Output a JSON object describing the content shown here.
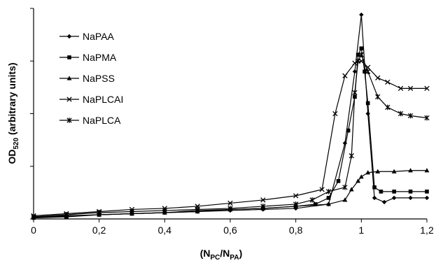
{
  "chart_data": {
    "type": "line",
    "title": "",
    "xlabel": {
      "main": "(N",
      "sub1": "PC",
      "mid": "/N",
      "sub2": "PA",
      "end": ")"
    },
    "ylabel": {
      "main": "OD",
      "sub": "520",
      "rest": " (arbitrary units)"
    },
    "xlim": [
      0,
      1.2
    ],
    "ylim": [
      0,
      1.0
    ],
    "xticks": [
      "0",
      "0,2",
      "0,4",
      "0,6",
      "0,8",
      "1",
      "1,2"
    ],
    "yticks_labeled": false,
    "grid": false,
    "legend_position": "top-left",
    "series": [
      {
        "name": "NaPAA",
        "marker": "diamond",
        "points": [
          [
            0,
            0.01
          ],
          [
            0.1,
            0.015
          ],
          [
            0.2,
            0.02
          ],
          [
            0.3,
            0.025
          ],
          [
            0.4,
            0.03
          ],
          [
            0.5,
            0.035
          ],
          [
            0.6,
            0.04
          ],
          [
            0.7,
            0.045
          ],
          [
            0.8,
            0.05
          ],
          [
            0.9,
            0.07
          ],
          [
            0.95,
            0.36
          ],
          [
            0.98,
            0.7
          ],
          [
            1.0,
            0.97
          ],
          [
            1.02,
            0.5
          ],
          [
            1.04,
            0.1
          ],
          [
            1.07,
            0.08
          ],
          [
            1.1,
            0.1
          ],
          [
            1.15,
            0.1
          ],
          [
            1.2,
            0.1
          ]
        ]
      },
      {
        "name": "NaPMA",
        "marker": "square",
        "points": [
          [
            0,
            0.005
          ],
          [
            0.1,
            0.01
          ],
          [
            0.2,
            0.02
          ],
          [
            0.3,
            0.025
          ],
          [
            0.4,
            0.03
          ],
          [
            0.5,
            0.04
          ],
          [
            0.6,
            0.045
          ],
          [
            0.7,
            0.05
          ],
          [
            0.8,
            0.06
          ],
          [
            0.86,
            0.07
          ],
          [
            0.9,
            0.1
          ],
          [
            0.93,
            0.18
          ],
          [
            0.96,
            0.42
          ],
          [
            0.98,
            0.58
          ],
          [
            0.99,
            0.78
          ],
          [
            1.0,
            0.81
          ],
          [
            1.01,
            0.7
          ],
          [
            1.02,
            0.55
          ],
          [
            1.04,
            0.15
          ],
          [
            1.06,
            0.13
          ],
          [
            1.1,
            0.13
          ],
          [
            1.15,
            0.13
          ],
          [
            1.2,
            0.13
          ]
        ]
      },
      {
        "name": "NaPSS",
        "marker": "triangle",
        "points": [
          [
            0,
            0.008
          ],
          [
            0.1,
            0.012
          ],
          [
            0.2,
            0.02
          ],
          [
            0.3,
            0.025
          ],
          [
            0.4,
            0.03
          ],
          [
            0.5,
            0.035
          ],
          [
            0.6,
            0.045
          ],
          [
            0.7,
            0.05
          ],
          [
            0.8,
            0.06
          ],
          [
            0.9,
            0.07
          ],
          [
            0.95,
            0.09
          ],
          [
            0.97,
            0.14
          ],
          [
            0.99,
            0.18
          ],
          [
            1.0,
            0.2
          ],
          [
            1.02,
            0.22
          ],
          [
            1.05,
            0.225
          ],
          [
            1.1,
            0.225
          ],
          [
            1.15,
            0.23
          ],
          [
            1.2,
            0.23
          ]
        ]
      },
      {
        "name": "NaPLCAI",
        "marker": "x",
        "points": [
          [
            0,
            0.015
          ],
          [
            0.1,
            0.025
          ],
          [
            0.2,
            0.035
          ],
          [
            0.3,
            0.045
          ],
          [
            0.4,
            0.05
          ],
          [
            0.5,
            0.06
          ],
          [
            0.6,
            0.075
          ],
          [
            0.7,
            0.09
          ],
          [
            0.8,
            0.11
          ],
          [
            0.88,
            0.14
          ],
          [
            0.92,
            0.5
          ],
          [
            0.95,
            0.68
          ],
          [
            0.98,
            0.74
          ],
          [
            1.0,
            0.75
          ],
          [
            1.02,
            0.72
          ],
          [
            1.05,
            0.67
          ],
          [
            1.08,
            0.65
          ],
          [
            1.12,
            0.62
          ],
          [
            1.15,
            0.62
          ],
          [
            1.2,
            0.62
          ]
        ]
      },
      {
        "name": "NaPLCA",
        "marker": "star",
        "points": [
          [
            0,
            0.01
          ],
          [
            0.1,
            0.02
          ],
          [
            0.2,
            0.03
          ],
          [
            0.3,
            0.035
          ],
          [
            0.4,
            0.04
          ],
          [
            0.5,
            0.045
          ],
          [
            0.6,
            0.05
          ],
          [
            0.7,
            0.06
          ],
          [
            0.8,
            0.07
          ],
          [
            0.85,
            0.09
          ],
          [
            0.9,
            0.13
          ],
          [
            0.95,
            0.15
          ],
          [
            0.97,
            0.3
          ],
          [
            0.98,
            0.6
          ],
          [
            0.99,
            0.75
          ],
          [
            1.0,
            0.78
          ],
          [
            1.02,
            0.7
          ],
          [
            1.05,
            0.58
          ],
          [
            1.08,
            0.53
          ],
          [
            1.12,
            0.5
          ],
          [
            1.15,
            0.49
          ],
          [
            1.2,
            0.48
          ]
        ]
      }
    ]
  }
}
